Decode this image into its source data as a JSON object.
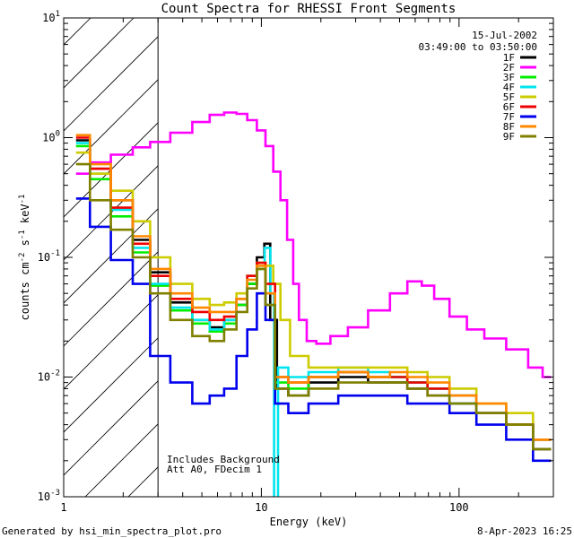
{
  "chart_data": {
    "type": "line",
    "title": "Count Spectra for RHESSI Front Segments",
    "xlabel": "Energy (keV)",
    "ylabel": "counts cm-2 s-1 keV-1",
    "xscale": "log",
    "yscale": "log",
    "xlim": [
      1,
      300
    ],
    "ylim": [
      0.001,
      10
    ],
    "x_ticks": [
      {
        "value": 1,
        "label": "1"
      },
      {
        "value": 10,
        "label": "10"
      },
      {
        "value": 100,
        "label": "100"
      }
    ],
    "y_ticks": [
      {
        "value": 0.001,
        "base": "10",
        "exp": "-3"
      },
      {
        "value": 0.01,
        "base": "10",
        "exp": "-2"
      },
      {
        "value": 0.1,
        "base": "10",
        "exp": "-1"
      },
      {
        "value": 1,
        "base": "10",
        "exp": "0"
      },
      {
        "value": 10,
        "base": "10",
        "exp": "1"
      }
    ],
    "hatched_region_keV": [
      1,
      3
    ],
    "header": {
      "date": "15-Jul-2002",
      "time_range": "03:49:00 to 03:50:00"
    },
    "annotations": [
      "Includes Background",
      "Att A0, FDecim 1"
    ],
    "series": [
      {
        "name": "1F",
        "color": "#000000",
        "points": [
          [
            1.23,
            0.95
          ],
          [
            1.5,
            0.55
          ],
          [
            2,
            0.3
          ],
          [
            2.5,
            0.14
          ],
          [
            3,
            0.075
          ],
          [
            4,
            0.042
          ],
          [
            5,
            0.03
          ],
          [
            6,
            0.026
          ],
          [
            7,
            0.03
          ],
          [
            8,
            0.04
          ],
          [
            9,
            0.06
          ],
          [
            10,
            0.1
          ],
          [
            10.7,
            0.13
          ],
          [
            11.5,
            0.03
          ],
          [
            12.5,
            0.008
          ],
          [
            15,
            0.007
          ],
          [
            20,
            0.009
          ],
          [
            30,
            0.01
          ],
          [
            40,
            0.009
          ],
          [
            50,
            0.009
          ],
          [
            60,
            0.008
          ],
          [
            80,
            0.007
          ],
          [
            100,
            0.006
          ],
          [
            150,
            0.005
          ],
          [
            200,
            0.004
          ],
          [
            280,
            0.0025
          ]
        ]
      },
      {
        "name": "2F",
        "color": "#ff00ff",
        "points": [
          [
            1.23,
            0.5
          ],
          [
            1.5,
            0.62
          ],
          [
            2,
            0.72
          ],
          [
            2.5,
            0.83
          ],
          [
            3,
            0.92
          ],
          [
            4,
            1.1
          ],
          [
            5,
            1.35
          ],
          [
            6,
            1.55
          ],
          [
            7,
            1.62
          ],
          [
            8,
            1.58
          ],
          [
            9,
            1.4
          ],
          [
            10,
            1.15
          ],
          [
            11,
            0.85
          ],
          [
            12,
            0.52
          ],
          [
            13,
            0.3
          ],
          [
            14,
            0.14
          ],
          [
            15,
            0.06
          ],
          [
            16,
            0.03
          ],
          [
            18,
            0.02
          ],
          [
            20,
            0.019
          ],
          [
            25,
            0.022
          ],
          [
            30,
            0.026
          ],
          [
            40,
            0.036
          ],
          [
            50,
            0.05
          ],
          [
            60,
            0.063
          ],
          [
            70,
            0.058
          ],
          [
            80,
            0.045
          ],
          [
            100,
            0.032
          ],
          [
            120,
            0.025
          ],
          [
            150,
            0.021
          ],
          [
            200,
            0.017
          ],
          [
            250,
            0.012
          ],
          [
            280,
            0.01
          ]
        ]
      },
      {
        "name": "3F",
        "color": "#00ee00",
        "points": [
          [
            1.23,
            0.85
          ],
          [
            1.5,
            0.45
          ],
          [
            2,
            0.22
          ],
          [
            2.5,
            0.11
          ],
          [
            3,
            0.058
          ],
          [
            4,
            0.036
          ],
          [
            5,
            0.028
          ],
          [
            6,
            0.024
          ],
          [
            7,
            0.028
          ],
          [
            8,
            0.04
          ],
          [
            9,
            0.06
          ],
          [
            10,
            0.08
          ],
          [
            11,
            0.04
          ],
          [
            12.5,
            0.009
          ],
          [
            15,
            0.008
          ],
          [
            20,
            0.01
          ],
          [
            30,
            0.011
          ],
          [
            40,
            0.01
          ],
          [
            50,
            0.01
          ],
          [
            60,
            0.009
          ],
          [
            80,
            0.008
          ],
          [
            100,
            0.007
          ],
          [
            150,
            0.005
          ],
          [
            200,
            0.004
          ],
          [
            280,
            0.003
          ]
        ]
      },
      {
        "name": "4F",
        "color": "#00e5ee",
        "points": [
          [
            1.23,
            0.9
          ],
          [
            1.5,
            0.5
          ],
          [
            2,
            0.25
          ],
          [
            2.5,
            0.12
          ],
          [
            3,
            0.06
          ],
          [
            4,
            0.038
          ],
          [
            5,
            0.03
          ],
          [
            6,
            0.025
          ],
          [
            7,
            0.03
          ],
          [
            8,
            0.045
          ],
          [
            9,
            0.07
          ],
          [
            10,
            0.09
          ],
          [
            10.8,
            0.12
          ],
          [
            11.4,
            0.05
          ],
          [
            11.8,
            0.0009
          ],
          [
            12.5,
            0.012
          ],
          [
            15,
            0.01
          ],
          [
            20,
            0.011
          ],
          [
            30,
            0.012
          ],
          [
            40,
            0.011
          ],
          [
            50,
            0.01
          ],
          [
            60,
            0.009
          ],
          [
            80,
            0.008
          ],
          [
            100,
            0.006
          ],
          [
            150,
            0.005
          ],
          [
            200,
            0.004
          ],
          [
            280,
            0.003
          ]
        ]
      },
      {
        "name": "5F",
        "color": "#cccc00",
        "points": [
          [
            1.23,
            0.75
          ],
          [
            1.5,
            0.5
          ],
          [
            2,
            0.36
          ],
          [
            2.5,
            0.2
          ],
          [
            3,
            0.1
          ],
          [
            4,
            0.06
          ],
          [
            5,
            0.045
          ],
          [
            6,
            0.04
          ],
          [
            7,
            0.042
          ],
          [
            8,
            0.05
          ],
          [
            9,
            0.07
          ],
          [
            10,
            0.09
          ],
          [
            11,
            0.085
          ],
          [
            12,
            0.06
          ],
          [
            13,
            0.03
          ],
          [
            15,
            0.015
          ],
          [
            20,
            0.012
          ],
          [
            30,
            0.012
          ],
          [
            40,
            0.012
          ],
          [
            50,
            0.012
          ],
          [
            60,
            0.011
          ],
          [
            80,
            0.01
          ],
          [
            100,
            0.008
          ],
          [
            150,
            0.006
          ],
          [
            200,
            0.005
          ],
          [
            280,
            0.003
          ]
        ]
      },
      {
        "name": "6F",
        "color": "#ee0000",
        "points": [
          [
            1.23,
            1.0
          ],
          [
            1.5,
            0.55
          ],
          [
            2,
            0.26
          ],
          [
            2.5,
            0.13
          ],
          [
            3,
            0.07
          ],
          [
            4,
            0.045
          ],
          [
            5,
            0.035
          ],
          [
            6,
            0.03
          ],
          [
            7,
            0.032
          ],
          [
            8,
            0.045
          ],
          [
            9,
            0.07
          ],
          [
            10,
            0.09
          ],
          [
            11,
            0.06
          ],
          [
            12.5,
            0.01
          ],
          [
            15,
            0.009
          ],
          [
            20,
            0.01
          ],
          [
            30,
            0.011
          ],
          [
            40,
            0.01
          ],
          [
            50,
            0.01
          ],
          [
            60,
            0.009
          ],
          [
            80,
            0.008
          ],
          [
            100,
            0.007
          ],
          [
            150,
            0.005
          ],
          [
            200,
            0.004
          ],
          [
            280,
            0.003
          ]
        ]
      },
      {
        "name": "7F",
        "color": "#0000ee",
        "points": [
          [
            1.23,
            0.31
          ],
          [
            1.5,
            0.18
          ],
          [
            2,
            0.095
          ],
          [
            2.5,
            0.06
          ],
          [
            3,
            0.015
          ],
          [
            4,
            0.009
          ],
          [
            5,
            0.006
          ],
          [
            6,
            0.007
          ],
          [
            7,
            0.008
          ],
          [
            8,
            0.015
          ],
          [
            9,
            0.025
          ],
          [
            10,
            0.05
          ],
          [
            11,
            0.03
          ],
          [
            12.5,
            0.006
          ],
          [
            15,
            0.005
          ],
          [
            20,
            0.006
          ],
          [
            30,
            0.007
          ],
          [
            40,
            0.007
          ],
          [
            50,
            0.007
          ],
          [
            60,
            0.006
          ],
          [
            80,
            0.006
          ],
          [
            100,
            0.005
          ],
          [
            150,
            0.004
          ],
          [
            200,
            0.003
          ],
          [
            280,
            0.002
          ]
        ]
      },
      {
        "name": "8F",
        "color": "#ff8800",
        "points": [
          [
            1.23,
            1.05
          ],
          [
            1.5,
            0.6
          ],
          [
            2,
            0.3
          ],
          [
            2.5,
            0.15
          ],
          [
            3,
            0.08
          ],
          [
            4,
            0.05
          ],
          [
            5,
            0.038
          ],
          [
            6,
            0.035
          ],
          [
            7,
            0.035
          ],
          [
            8,
            0.045
          ],
          [
            9,
            0.065
          ],
          [
            10,
            0.085
          ],
          [
            11,
            0.05
          ],
          [
            12.5,
            0.01
          ],
          [
            15,
            0.009
          ],
          [
            20,
            0.01
          ],
          [
            30,
            0.011
          ],
          [
            40,
            0.01
          ],
          [
            50,
            0.011
          ],
          [
            60,
            0.01
          ],
          [
            80,
            0.009
          ],
          [
            100,
            0.007
          ],
          [
            150,
            0.006
          ],
          [
            200,
            0.004
          ],
          [
            280,
            0.003
          ]
        ]
      },
      {
        "name": "9F",
        "color": "#808000",
        "points": [
          [
            1.23,
            0.6
          ],
          [
            1.5,
            0.3
          ],
          [
            2,
            0.17
          ],
          [
            2.5,
            0.1
          ],
          [
            3,
            0.05
          ],
          [
            4,
            0.03
          ],
          [
            5,
            0.022
          ],
          [
            6,
            0.02
          ],
          [
            7,
            0.025
          ],
          [
            8,
            0.035
          ],
          [
            9,
            0.055
          ],
          [
            10,
            0.08
          ],
          [
            11,
            0.04
          ],
          [
            12.5,
            0.008
          ],
          [
            15,
            0.007
          ],
          [
            20,
            0.008
          ],
          [
            30,
            0.009
          ],
          [
            40,
            0.009
          ],
          [
            50,
            0.009
          ],
          [
            60,
            0.008
          ],
          [
            80,
            0.007
          ],
          [
            100,
            0.006
          ],
          [
            150,
            0.005
          ],
          [
            200,
            0.004
          ],
          [
            280,
            0.0025
          ]
        ]
      }
    ]
  },
  "footer": {
    "left": "Generated by hsi_min_spectra_plot.pro",
    "right": "8-Apr-2023 16:25"
  },
  "colors": {
    "background": "#ffffff",
    "axis": "#000000"
  }
}
